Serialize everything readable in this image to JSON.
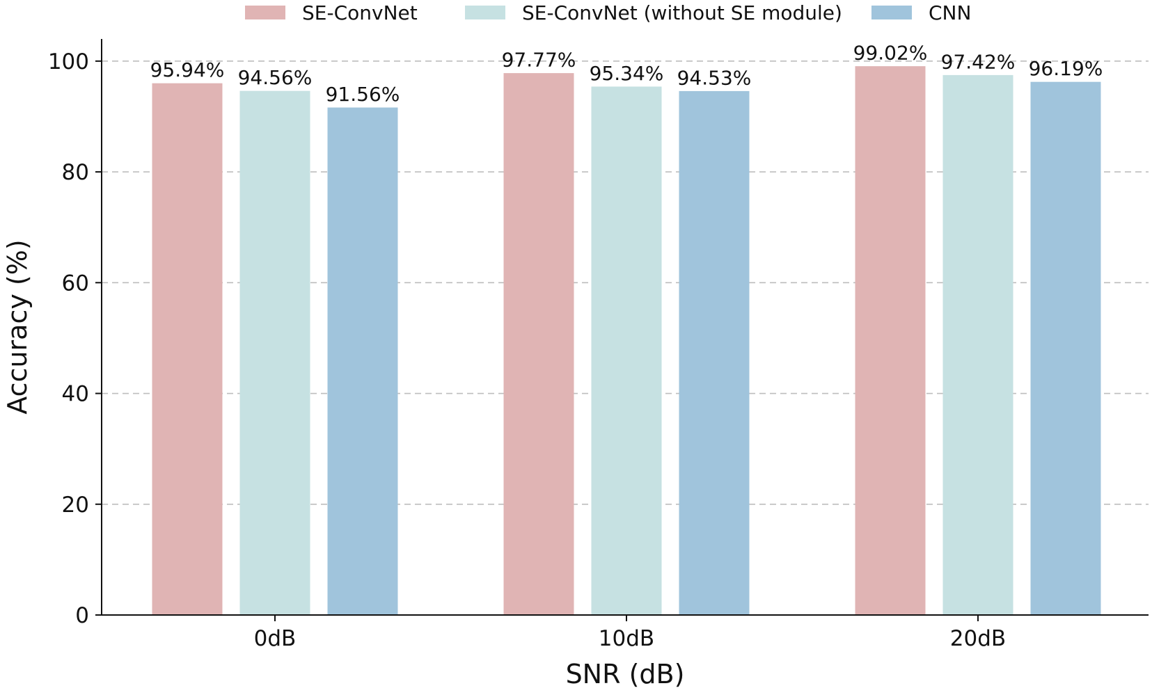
{
  "chart_data": {
    "type": "bar",
    "title": "",
    "xlabel": "SNR (dB)",
    "ylabel": "Accuracy (%)",
    "categories": [
      "0dB",
      "10dB",
      "20dB"
    ],
    "ylim": [
      0,
      104
    ],
    "yticks": [
      0,
      20,
      40,
      60,
      80,
      100
    ],
    "grid": "y-dashed",
    "legend_position": "top-center",
    "series": [
      {
        "name": "SE-ConvNet",
        "color": "#e0b4b4",
        "values": [
          95.94,
          97.77,
          99.02
        ],
        "labels": [
          "95.94%",
          "97.77%",
          "99.02%"
        ]
      },
      {
        "name": "SE-ConvNet (without SE module)",
        "color": "#c6e1e2",
        "values": [
          94.56,
          95.34,
          97.42
        ],
        "labels": [
          "94.56%",
          "95.34%",
          "97.42%"
        ]
      },
      {
        "name": "CNN",
        "color": "#a0c4dc",
        "values": [
          91.56,
          94.53,
          96.19
        ],
        "labels": [
          "91.56%",
          "94.53%",
          "96.19%"
        ]
      }
    ]
  }
}
